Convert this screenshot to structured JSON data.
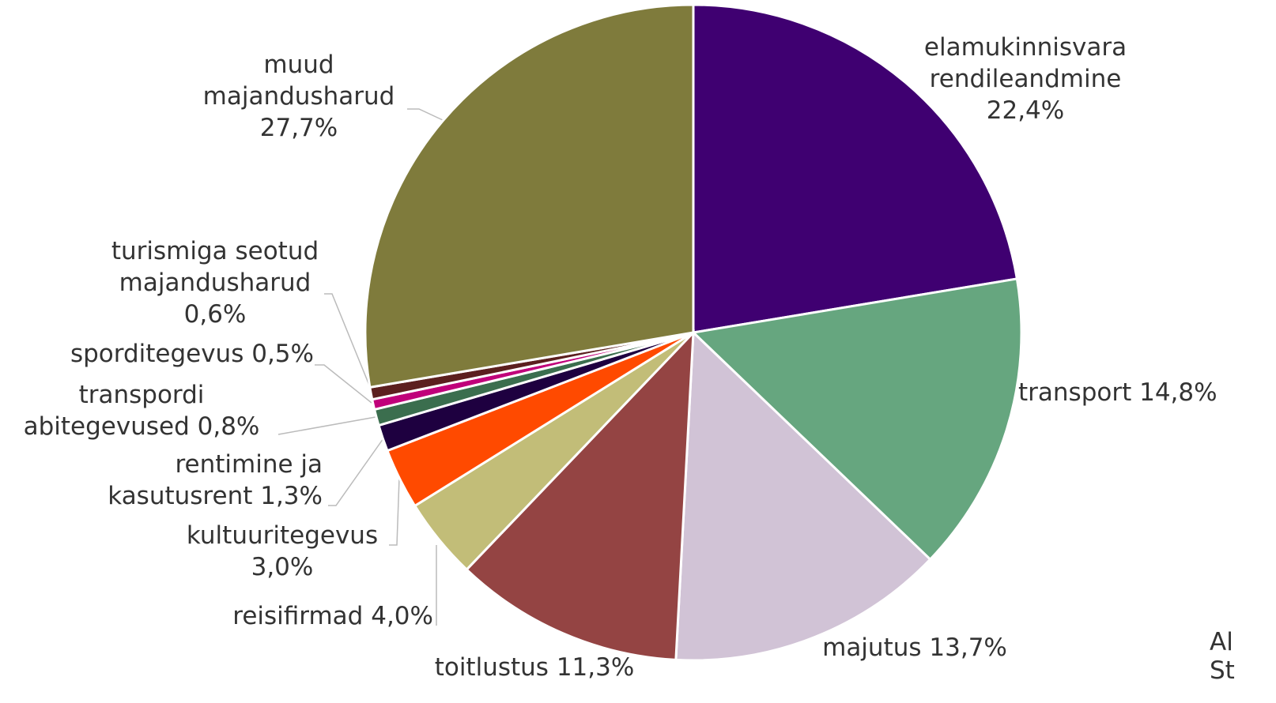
{
  "chart_data": {
    "type": "pie",
    "categories": [
      "elamukinnisvara\nrendileandmine",
      "transport",
      "majutus",
      "toitlustus",
      "reisifirmad",
      "kultuuritegevus",
      "rentimine ja\nkasutusrent",
      "transpordi\nabitegevused",
      "sporditegevus",
      "turismiga seotud\nmajandusharud",
      "muud\nmajandusharud"
    ],
    "values": [
      22.4,
      14.8,
      13.7,
      11.3,
      4.0,
      3.0,
      1.3,
      0.8,
      0.5,
      0.6,
      27.7
    ],
    "value_labels": [
      "22,4%",
      "14,8%",
      "13,7%",
      "11,3%",
      "4,0%",
      "3,0%",
      "1,3%",
      "0,8%",
      "0,5%",
      "0,6%",
      "27,7%"
    ],
    "colors": [
      "#3f0071",
      "#66a67f",
      "#d1c3d6",
      "#944443",
      "#c2bd78",
      "#ff4a00",
      "#1e0040",
      "#3b6e4e",
      "#c0007a",
      "#5c1f1f",
      "#7f7b3c"
    ],
    "source": [
      "Al",
      "St"
    ]
  }
}
